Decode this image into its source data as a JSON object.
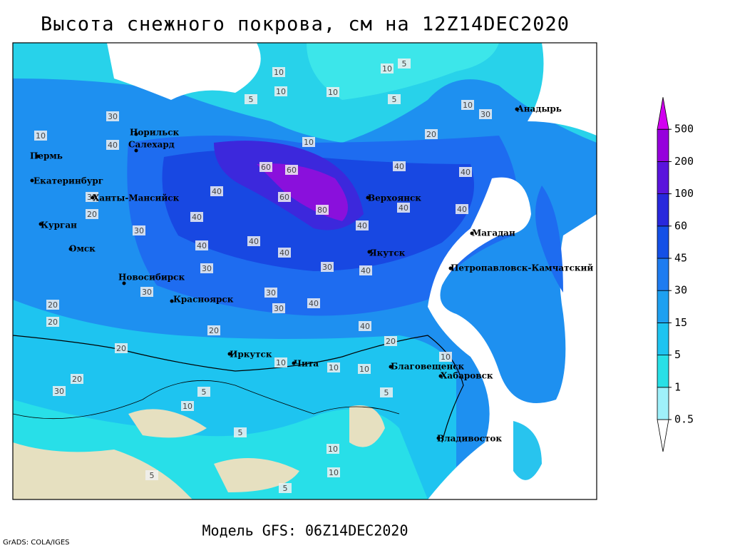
{
  "title": "Высота снежного покрова, см на 12Z14DEC2020",
  "footer": "Модель GFS: 06Z14DEC2020",
  "credit": "GrADS: COLA/IGES",
  "legend": {
    "levels": [
      0.5,
      1,
      5,
      15,
      30,
      45,
      60,
      100,
      200,
      500
    ],
    "colors": [
      "#ffffff",
      "#9ff0fa",
      "#28e0e6",
      "#1ec4f0",
      "#1ea0f0",
      "#1e7cf0",
      "#1450e6",
      "#2828dc",
      "#5a14dc",
      "#9600dc",
      "#d200f0"
    ]
  },
  "cities": [
    "Норильск",
    "Салехард",
    "Пермь",
    "Екатеринбург",
    "Ханты-Мансийск",
    "Курган",
    "Омск",
    "Новосибирск",
    "Красноярск",
    "Иркутск",
    "Чита",
    "Благовещенск",
    "Хабаровск",
    "Владивосток",
    "Якутск",
    "Верхоянск",
    "Магадан",
    "Петропавловск-Камчатский",
    "Анадырь"
  ],
  "contour_labels": [
    10,
    10,
    5,
    10,
    5,
    5,
    10,
    10,
    30,
    30,
    10,
    40,
    10,
    20,
    60,
    60,
    40,
    40,
    60,
    80,
    40,
    40,
    40,
    30,
    20,
    30,
    40,
    40,
    40,
    40,
    40,
    30,
    40,
    30,
    30,
    30,
    20,
    40,
    20,
    30,
    20,
    20,
    40,
    20,
    10,
    10,
    10,
    20,
    30,
    5,
    5,
    10,
    5,
    10,
    10,
    5,
    5,
    10
  ]
}
